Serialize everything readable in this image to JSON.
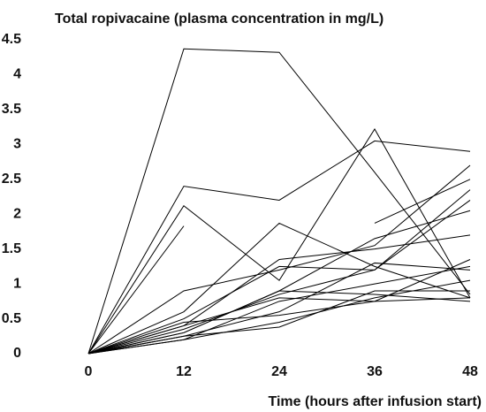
{
  "chart_data": {
    "type": "line",
    "title": "Total ropivacaine (plasma concentration in mg/L)",
    "x_label": "Time (hours after infusion start)",
    "x": [
      0,
      12,
      24,
      36,
      48
    ],
    "xlim": [
      0,
      48
    ],
    "xticks": [
      0,
      12,
      24,
      36,
      48
    ],
    "ylim": [
      0,
      4.5
    ],
    "yticks": [
      0,
      0.5,
      1,
      1.5,
      2,
      2.5,
      3,
      3.5,
      4,
      4.5
    ],
    "series": [
      {
        "color": "#000000",
        "values": [
          0,
          4.37,
          4.32,
          2.6,
          0.85
        ]
      },
      {
        "color": "#000000",
        "values": [
          0,
          2.4,
          2.2,
          3.05,
          2.9
        ]
      },
      {
        "color": "#000000",
        "values": [
          0,
          2.12,
          1.05,
          3.22,
          0.8
        ]
      },
      {
        "color": "#000000",
        "values": [
          0,
          1.83,
          null,
          null,
          null
        ]
      },
      {
        "color": "#000000",
        "values": [
          0,
          0.6,
          1.87,
          1.25,
          0.8
        ]
      },
      {
        "color": "#000000",
        "values": [
          null,
          null,
          null,
          1.87,
          2.5
        ]
      },
      {
        "color": "#000000",
        "values": [
          0,
          0.9,
          1.2,
          1.55,
          2.7
        ]
      },
      {
        "color": "#000000",
        "values": [
          0,
          0.5,
          1.25,
          1.2,
          2.35
        ]
      },
      {
        "color": "#000000",
        "values": [
          0,
          0.3,
          0.9,
          1.65,
          2.05
        ]
      },
      {
        "color": "#000000",
        "values": [
          0,
          0.4,
          1.35,
          1.5,
          1.7
        ]
      },
      {
        "color": "#000000",
        "values": [
          0,
          0.35,
          0.85,
          1.2,
          2.2
        ]
      },
      {
        "color": "#000000",
        "values": [
          0,
          0.2,
          0.75,
          1.0,
          1.25
        ]
      },
      {
        "color": "#000000",
        "values": [
          0,
          0.25,
          0.6,
          1.3,
          1.2
        ]
      },
      {
        "color": "#000000",
        "values": [
          0,
          0.2,
          0.45,
          0.8,
          1.05
        ]
      },
      {
        "color": "#000000",
        "values": [
          0,
          0.3,
          0.9,
          0.85,
          0.75
        ]
      },
      {
        "color": "#000000",
        "values": [
          0,
          0.45,
          0.55,
          0.75,
          1.35
        ]
      },
      {
        "color": "#000000",
        "values": [
          0,
          0.25,
          0.38,
          0.9,
          0.9
        ]
      },
      {
        "color": "#000000",
        "values": [
          0,
          0.4,
          0.8,
          0.75,
          0.8
        ]
      }
    ]
  }
}
